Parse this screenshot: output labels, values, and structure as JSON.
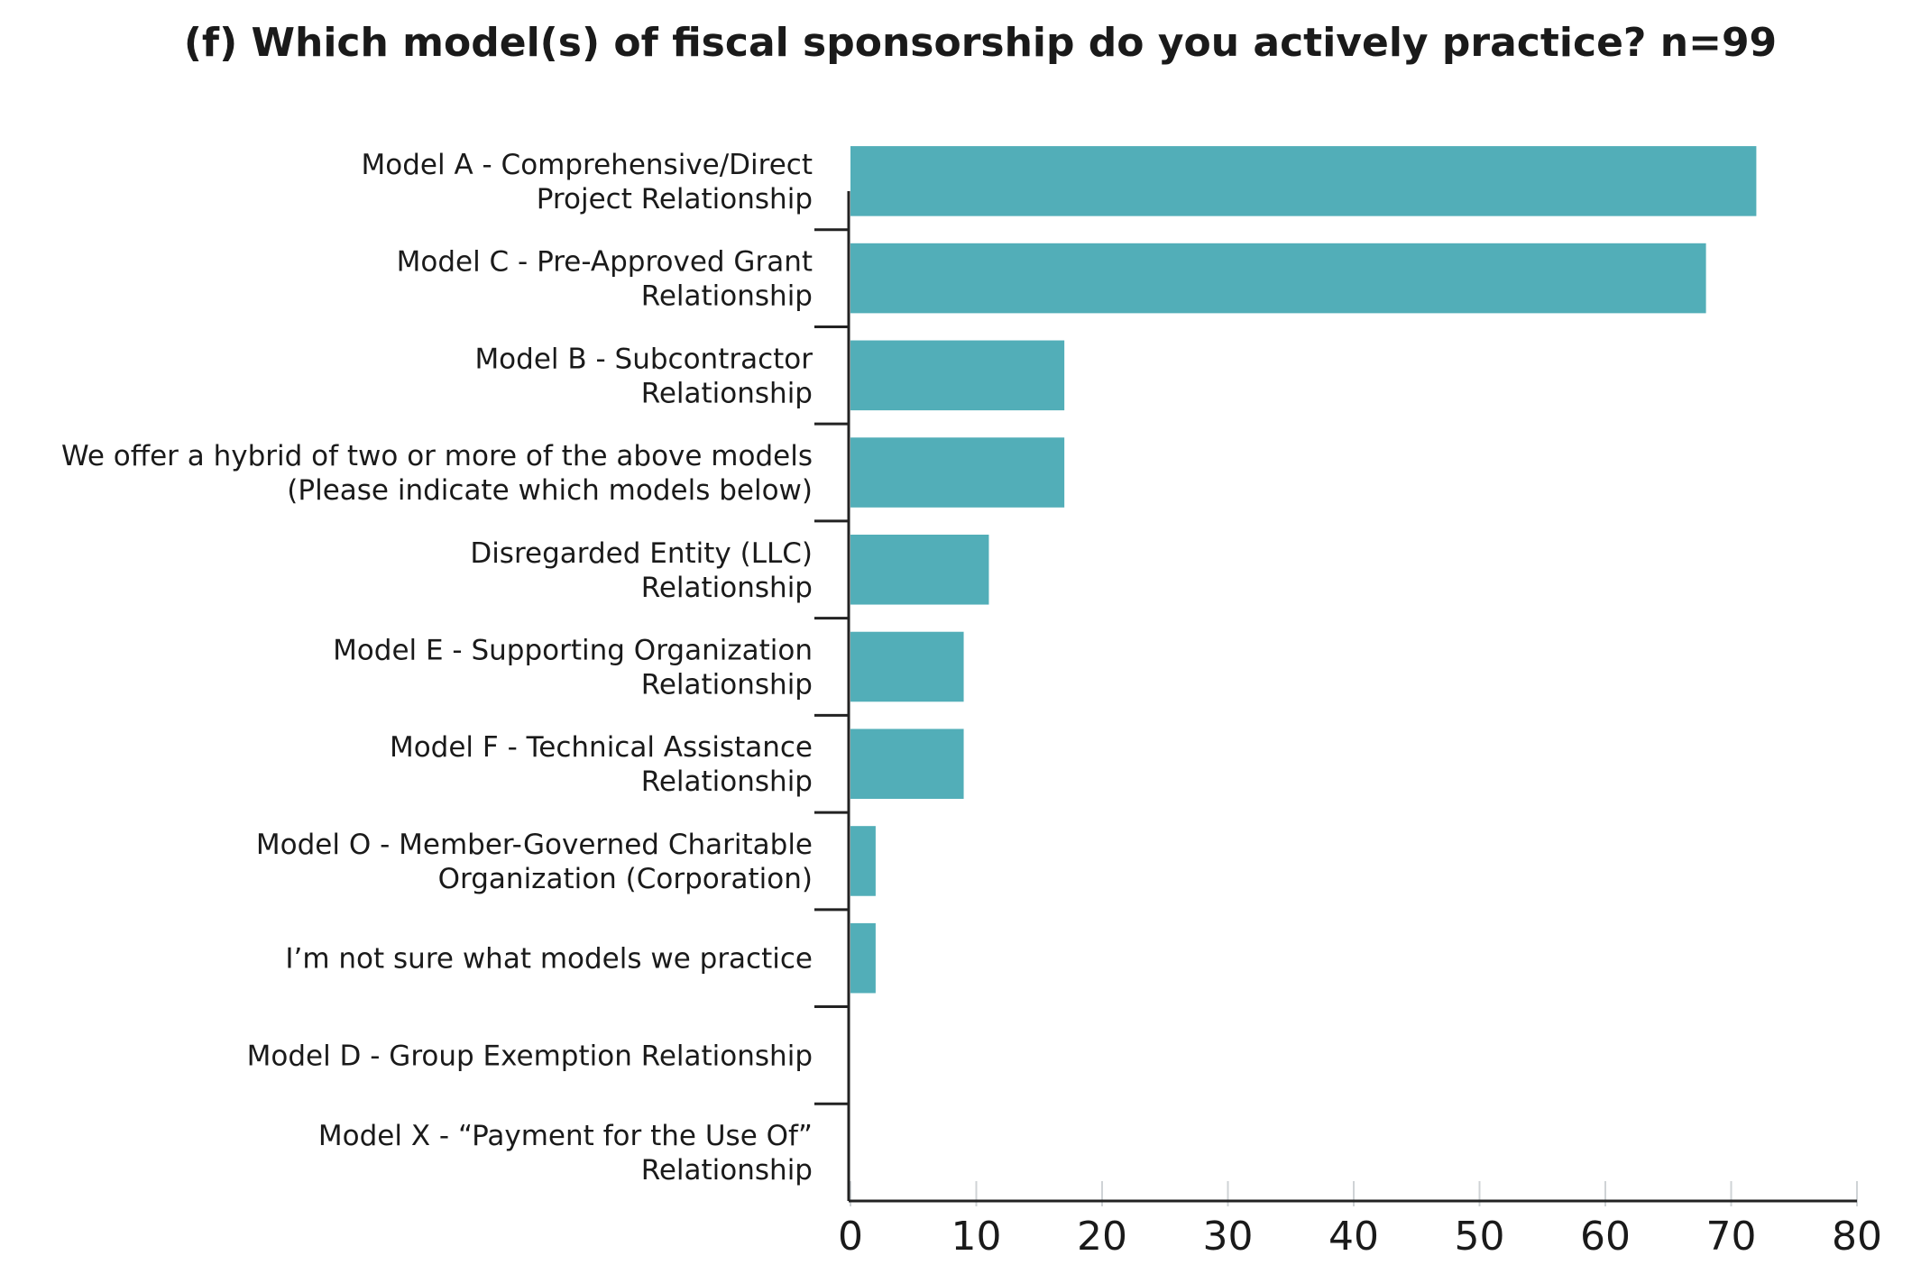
{
  "chart_data": {
    "type": "bar",
    "orientation": "horizontal",
    "title": "(f) Which model(s) of fiscal sponsorship do you actively practice?  n=99",
    "categories": [
      "Model A - Comprehensive/Direct\nProject Relationship",
      "Model C - Pre-Approved Grant\nRelationship",
      "Model B - Subcontractor\nRelationship",
      "We offer a hybrid of two or more of the above models\n(Please indicate which models below)",
      "Disregarded Entity (LLC)\nRelationship",
      "Model E - Supporting Organization\nRelationship",
      "Model F - Technical Assistance\nRelationship",
      "Model O - Member-Governed Charitable\nOrganization (Corporation)",
      "I’m not sure what models we practice",
      "Model D - Group Exemption Relationship",
      "Model X - “Payment for the Use Of”\nRelationship"
    ],
    "values": [
      72,
      68,
      17,
      17,
      11,
      9,
      9,
      2,
      2,
      0,
      0
    ],
    "color": "#52aeb8",
    "xlim": [
      0,
      80
    ],
    "xticks": [
      0,
      10,
      20,
      30,
      40,
      50,
      60,
      70,
      80
    ]
  }
}
